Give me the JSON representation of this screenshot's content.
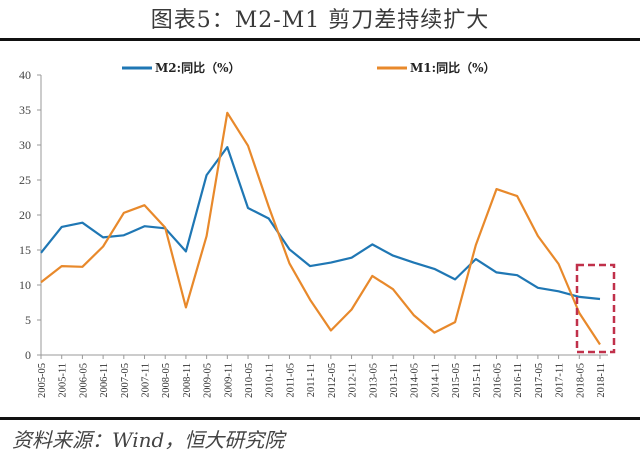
{
  "header": {
    "title": "图表5：M2-M1 剪刀差持续扩大"
  },
  "footer": {
    "source": "资料来源：Wind，恒大研究院"
  },
  "colors": {
    "m2": "#1f77b4",
    "m1": "#e8892b",
    "highlight": "#c0304a",
    "axis": "#999999"
  },
  "chart_data": {
    "type": "line",
    "title": "图表5：M2-M1 剪刀差持续扩大",
    "xlabel": "",
    "ylabel": "",
    "ylim": [
      0,
      40
    ],
    "yticks": [
      0,
      5,
      10,
      15,
      20,
      25,
      30,
      35,
      40
    ],
    "grid": false,
    "legend_position": "top",
    "categories": [
      "2005-05",
      "2005-11",
      "2006-05",
      "2006-11",
      "2007-05",
      "2007-11",
      "2008-05",
      "2008-11",
      "2009-05",
      "2009-11",
      "2010-05",
      "2010-11",
      "2011-05",
      "2011-11",
      "2012-05",
      "2012-11",
      "2013-05",
      "2013-11",
      "2014-05",
      "2014-11",
      "2015-05",
      "2015-11",
      "2016-05",
      "2016-11",
      "2017-05",
      "2017-11",
      "2018-05",
      "2018-11"
    ],
    "series": [
      {
        "name": "M2:同比（%）",
        "values": [
          14.6,
          18.3,
          18.9,
          16.8,
          17.1,
          18.4,
          18.1,
          14.8,
          25.7,
          29.7,
          21.0,
          19.5,
          15.1,
          12.7,
          13.2,
          13.9,
          15.8,
          14.2,
          13.2,
          12.3,
          10.8,
          13.7,
          11.8,
          11.4,
          9.6,
          9.1,
          8.3,
          8.0
        ]
      },
      {
        "name": "M1:同比（%）",
        "values": [
          10.4,
          12.7,
          12.6,
          15.5,
          20.3,
          21.4,
          18.2,
          6.8,
          17.0,
          34.6,
          29.9,
          21.2,
          13.1,
          7.9,
          3.5,
          6.5,
          11.3,
          9.4,
          5.7,
          3.2,
          4.7,
          15.7,
          23.7,
          22.7,
          17.0,
          13.0,
          6.0,
          1.5
        ]
      }
    ],
    "annotations": [
      {
        "type": "dashed-box",
        "range": [
          "2018-05",
          "2018-11"
        ],
        "color": "#c0304a"
      }
    ]
  },
  "legend": {
    "m2": "M2:同比（%）",
    "m1": "M1:同比（%）"
  }
}
